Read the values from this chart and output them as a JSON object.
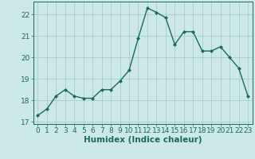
{
  "x": [
    0,
    1,
    2,
    3,
    4,
    5,
    6,
    7,
    8,
    9,
    10,
    11,
    12,
    13,
    14,
    15,
    16,
    17,
    18,
    19,
    20,
    21,
    22,
    23
  ],
  "y": [
    17.3,
    17.6,
    18.2,
    18.5,
    18.2,
    18.1,
    18.1,
    18.5,
    18.5,
    18.9,
    19.4,
    20.9,
    22.3,
    22.1,
    21.85,
    20.6,
    21.2,
    21.2,
    20.3,
    20.3,
    20.5,
    20.0,
    19.5,
    18.2
  ],
  "line_color": "#1a6b5a",
  "marker": "D",
  "markersize": 2.0,
  "linewidth": 1.0,
  "bg_color": "#cce8e8",
  "grid_color": "#aacccc",
  "xlabel": "Humidex (Indice chaleur)",
  "xlim": [
    -0.5,
    23.5
  ],
  "ylim": [
    16.9,
    22.6
  ],
  "yticks": [
    17,
    18,
    19,
    20,
    21,
    22
  ],
  "xticks": [
    0,
    1,
    2,
    3,
    4,
    5,
    6,
    7,
    8,
    9,
    10,
    11,
    12,
    13,
    14,
    15,
    16,
    17,
    18,
    19,
    20,
    21,
    22,
    23
  ],
  "label_color": "#1a6b5a",
  "tick_color": "#1a6b5a",
  "xlabel_fontsize": 7.5,
  "tick_fontsize": 6.5
}
